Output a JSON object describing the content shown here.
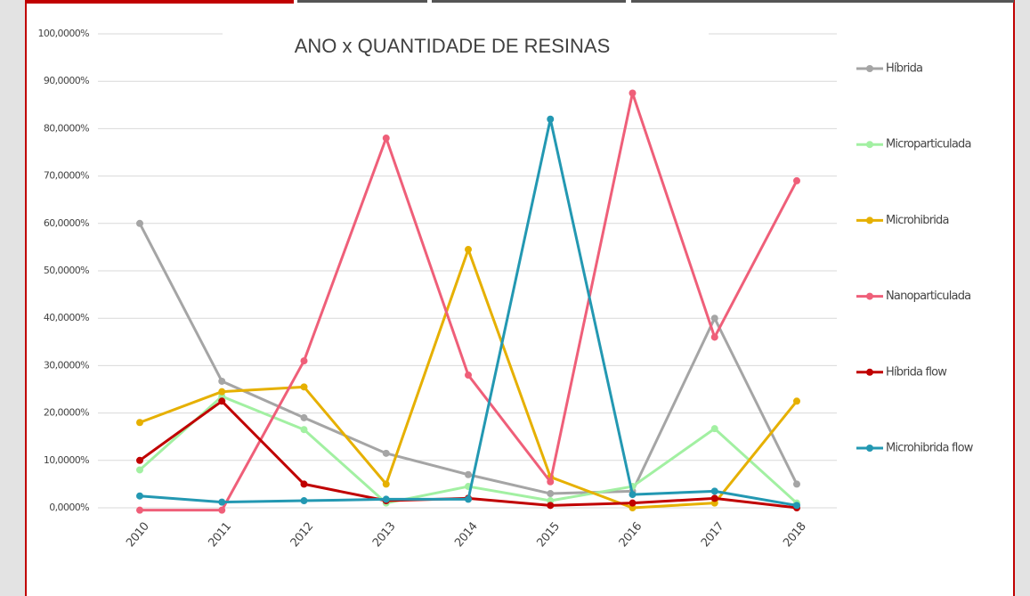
{
  "chart_data": {
    "type": "line",
    "title": "ANO x QUANTIDADE DE RESINAS",
    "categories": [
      "2010",
      "2011",
      "2012",
      "2013",
      "2014",
      "2015",
      "2016",
      "2017",
      "2018"
    ],
    "series": [
      {
        "name": "Híbrida",
        "color": "#a5a5a5",
        "values": [
          60,
          26.7,
          19,
          11.5,
          7,
          3,
          3.5,
          40,
          5
        ]
      },
      {
        "name": "Microparticulada",
        "color": "#a2f0a2",
        "values": [
          8,
          23.5,
          16.5,
          1,
          4.5,
          1.5,
          4.5,
          16.7,
          1
        ]
      },
      {
        "name": "Microhibrida",
        "color": "#e6b000",
        "values": [
          18,
          24.5,
          25.5,
          5,
          54.5,
          6.5,
          0,
          1,
          22.5
        ]
      },
      {
        "name": "Nanoparticulada",
        "color": "#ef5f79",
        "values": [
          -0.5,
          -0.5,
          31,
          78,
          28,
          5.5,
          87.5,
          36,
          69
        ]
      },
      {
        "name": "Híbrida flow",
        "color": "#c00000",
        "values": [
          10,
          22.5,
          5,
          1.5,
          2,
          0.5,
          1,
          2,
          0
        ]
      },
      {
        "name": "Microhibrida flow",
        "color": "#2398b2",
        "values": [
          2.5,
          1.2,
          1.5,
          1.8,
          1.8,
          82,
          2.8,
          3.5,
          0.5
        ]
      }
    ],
    "ylim": [
      0,
      100
    ],
    "yticks": [
      {
        "value": 0,
        "label": "0,0000%"
      },
      {
        "value": 10,
        "label": "10,0000%"
      },
      {
        "value": 20,
        "label": "20,0000%"
      },
      {
        "value": 30,
        "label": "30,0000%"
      },
      {
        "value": 40,
        "label": "40,0000%"
      },
      {
        "value": 50,
        "label": "50,0000%"
      },
      {
        "value": 60,
        "label": "60,0000%"
      },
      {
        "value": 70,
        "label": "70,0000%"
      },
      {
        "value": 80,
        "label": "80,0000%"
      },
      {
        "value": 90,
        "label": "90,0000%"
      },
      {
        "value": 100,
        "label": "100,0000%"
      }
    ],
    "grid": true,
    "legend": "right"
  }
}
